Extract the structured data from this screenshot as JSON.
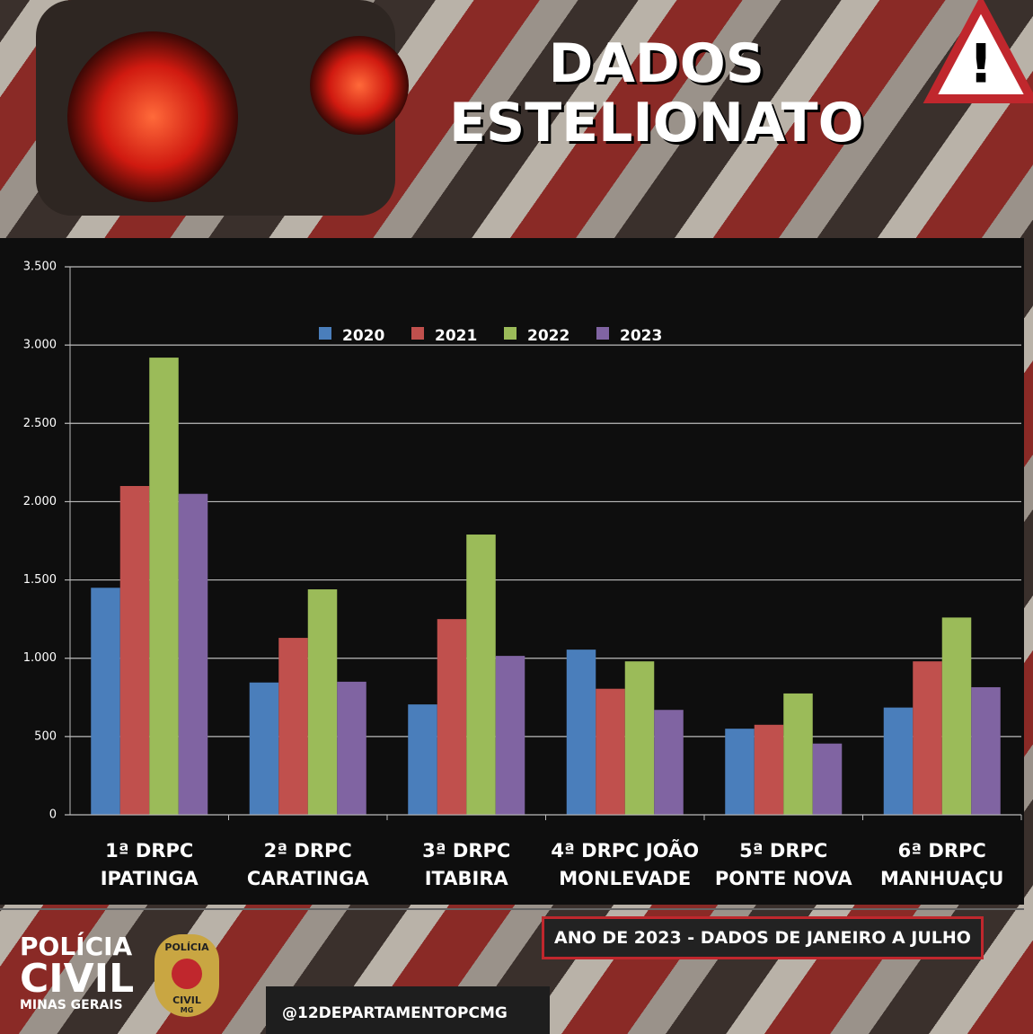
{
  "chart_data": {
    "type": "bar",
    "title": "DADOS ESTELIONATO",
    "categories": [
      "1ª DRPC IPATINGA",
      "2ª DRPC CARATINGA",
      "3ª DRPC ITABIRA",
      "4ª DRPC JOÃO MONLEVADE",
      "5ª DRPC PONTE NOVA",
      "6ª DRPC MANHUAÇU"
    ],
    "series": [
      {
        "name": "2020",
        "color": "#4a7ebb",
        "values": [
          1450,
          845,
          705,
          1055,
          550,
          685
        ]
      },
      {
        "name": "2021",
        "color": "#c0504d",
        "values": [
          2100,
          1130,
          1250,
          805,
          575,
          980
        ]
      },
      {
        "name": "2022",
        "color": "#9bbb59",
        "values": [
          2920,
          1440,
          1790,
          980,
          775,
          1260
        ]
      },
      {
        "name": "2023",
        "color": "#8064a2",
        "values": [
          2050,
          850,
          1015,
          670,
          455,
          815
        ]
      }
    ],
    "ylim": [
      0,
      3500
    ],
    "yticks": [
      0,
      500,
      {
        "value": 1000,
        "label": "1.000"
      },
      {
        "value": 1500,
        "label": "1.500"
      },
      {
        "value": 2000,
        "label": "2.000"
      },
      {
        "value": 2500,
        "label": "2.500"
      },
      {
        "value": 3000,
        "label": "3.000"
      },
      {
        "value": 3500,
        "label": "3.500"
      }
    ],
    "grid": true,
    "legend": "top"
  },
  "footer": {
    "note": "ANO DE 2023 - DADOS DE JANEIRO A JULHO",
    "logo": [
      "POLÍCIA",
      "CIVIL",
      "MINAS GERAIS"
    ],
    "badge": [
      "POLÍCIA",
      "CIVIL",
      "MG"
    ],
    "handle": "@12DEPARTAMENTOPCMG"
  }
}
